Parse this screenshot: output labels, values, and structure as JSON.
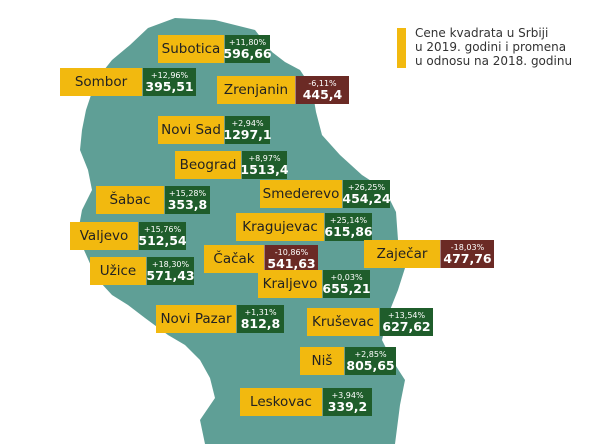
{
  "legend": {
    "text": "Cene kvadrata u Srbiji\nu 2019. godini i promena\nu odnosu na 2018. godinu",
    "color": "#f2b90f"
  },
  "colors": {
    "map": "#5f9f96",
    "up": "#1f5d2b",
    "down": "#6b2a25",
    "label": "#f2b90f"
  },
  "cities": [
    {
      "name": "Subotica",
      "change": "+11,80%",
      "price": "596,66",
      "trend": "up"
    },
    {
      "name": "Sombor",
      "change": "+12,96%",
      "price": "395,51",
      "trend": "up"
    },
    {
      "name": "Zrenjanin",
      "change": "-6,11%",
      "price": "445,4",
      "trend": "down"
    },
    {
      "name": "Novi Sad",
      "change": "+2,94%",
      "price": "1297,1",
      "trend": "up"
    },
    {
      "name": "Beograd",
      "change": "+8,97%",
      "price": "1513,4",
      "trend": "up"
    },
    {
      "name": "Šabac",
      "change": "+15,28%",
      "price": "353,8",
      "trend": "up"
    },
    {
      "name": "Smederevo",
      "change": "+26,25%",
      "price": "454,24",
      "trend": "up"
    },
    {
      "name": "Valjevo",
      "change": "+15,76%",
      "price": "512,54",
      "trend": "up"
    },
    {
      "name": "Kragujevac",
      "change": "+25,14%",
      "price": "615,86",
      "trend": "up"
    },
    {
      "name": "Čačak",
      "change": "-10,86%",
      "price": "541,63",
      "trend": "down"
    },
    {
      "name": "Zaječar",
      "change": "-18,03%",
      "price": "477,76",
      "trend": "down"
    },
    {
      "name": "Užice",
      "change": "+18,30%",
      "price": "571,43",
      "trend": "up"
    },
    {
      "name": "Kraljevo",
      "change": "+0,03%",
      "price": "655,21",
      "trend": "up"
    },
    {
      "name": "Novi Pazar",
      "change": "+1,31%",
      "price": "812,8",
      "trend": "up"
    },
    {
      "name": "Kruševac",
      "change": "+13,54%",
      "price": "627,62",
      "trend": "up"
    },
    {
      "name": "Niš",
      "change": "+2,85%",
      "price": "805,65",
      "trend": "up"
    },
    {
      "name": "Leskovac",
      "change": "+3,94%",
      "price": "339,2",
      "trend": "up"
    }
  ]
}
